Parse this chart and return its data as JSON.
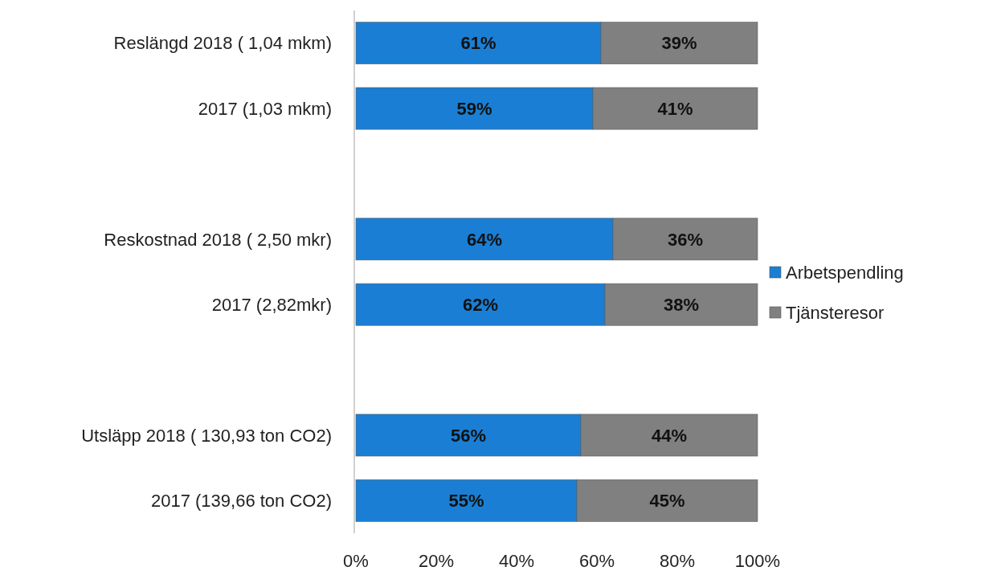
{
  "chart_data": {
    "type": "bar",
    "orientation": "horizontal",
    "stacked": true,
    "categories": [
      "Reslängd 2018 ( 1,04 mkm)",
      "2017 (1,03 mkm)",
      null,
      "Reskostnad 2018 ( 2,50 mkr)",
      "2017 (2,82mkr)",
      null,
      "Utsläpp 2018 ( 130,93 ton CO2)",
      "2017 (139,66 ton CO2)"
    ],
    "series": [
      {
        "name": "Arbetspendling",
        "color": "#1a7fd4",
        "values": [
          61,
          59,
          null,
          64,
          62,
          null,
          56,
          55
        ],
        "value_labels": [
          "61%",
          "59%",
          null,
          "64%",
          "62%",
          null,
          "56%",
          "55%"
        ]
      },
      {
        "name": "Tjänsteresor",
        "color": "#808080",
        "values": [
          39,
          41,
          null,
          36,
          38,
          null,
          44,
          45
        ],
        "value_labels": [
          "39%",
          "41%",
          null,
          "36%",
          "38%",
          null,
          "44%",
          "45%"
        ]
      }
    ],
    "xlim": [
      0,
      100
    ],
    "xticks": [
      {
        "value": 0,
        "label": "0%"
      },
      {
        "value": 20,
        "label": "20%"
      },
      {
        "value": 40,
        "label": "40%"
      },
      {
        "value": 60,
        "label": "60%"
      },
      {
        "value": 80,
        "label": "80%"
      },
      {
        "value": 100,
        "label": "100%"
      }
    ],
    "grid": false,
    "legend": "right"
  }
}
